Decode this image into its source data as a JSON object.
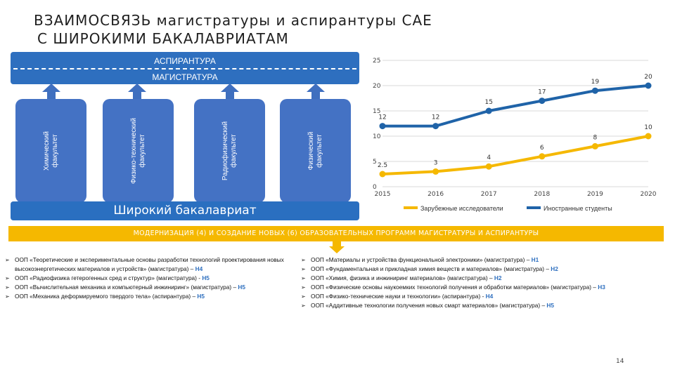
{
  "title": {
    "line1": "ВЗАИМОСВЯЗЬ магистратуры и аспирантуры САЕ",
    "line2": "С ШИРОКИМИ БАКАЛАВРИАТАМ"
  },
  "diagram": {
    "aspirantura": "АСПИРАНТУРА",
    "magistratura": "МАГИСТРАТУРА",
    "faculties": [
      "Химический\nфакультет",
      "Физико-технический\nфакультет",
      "Радиофизический\nфакультет",
      "Физический\nфакультет"
    ],
    "bachelor": "Широкий бакалавриат",
    "colors": {
      "block": "#2e6fbf",
      "faculty": "#4472c4",
      "arrow": "#3f6fbf"
    }
  },
  "chart_data": {
    "type": "line",
    "categories": [
      "2015",
      "2016",
      "2017",
      "2018",
      "2019",
      "2020"
    ],
    "series": [
      {
        "name": "Зарубежные исследователи",
        "values": [
          2.5,
          3,
          4,
          6,
          8,
          10
        ],
        "color": "#f5b800"
      },
      {
        "name": "Иностранные студенты",
        "values": [
          12,
          12,
          15,
          17,
          19,
          20
        ],
        "color": "#1f63a8"
      }
    ],
    "ylim": [
      0,
      25
    ],
    "yticks": [
      "0",
      "5",
      "10",
      "15",
      "20",
      "25"
    ],
    "grid": true,
    "legend": "bottom"
  },
  "banner": "МОДЕРНИЗАЦИЯ (4) И СОЗДАНИЕ НОВЫХ (6) ОБРАЗОВАТЕЛЬНЫХ ПРОГРАММ МАГИСТРАТУРЫ И АСПИРАНТУРЫ",
  "programs": {
    "left": [
      {
        "text": "ООП «Теоретические и экспериментальные основы разработки технологий проектирования новых высокоэнергетических материалов и устройств» (магистратура) – ",
        "code": "Н4"
      },
      {
        "text": "ООП «Радиофизика гетерогенных сред и структур» (магистратура) - ",
        "code": "Н5"
      },
      {
        "text": "ООП «Вычислительная механика и компьютерный инжиниринг» (магистратура) – ",
        "code": "Н5"
      },
      {
        "text": "ООП «Механика деформируемого твердого тела» (аспирантура) – ",
        "code": "Н5"
      }
    ],
    "right": [
      {
        "text": "ООП «Материалы и устройства функциональной электроники» (магистратура) – ",
        "code": "Н1"
      },
      {
        "text": "ООП «Фундаментальная и прикладная химия веществ и материалов» (магистратура) – ",
        "code": "Н2"
      },
      {
        "text": "ООП «Химия, физика и инжиниринг материалов» (магистратура) – ",
        "code": "Н2"
      },
      {
        "text": "ООП «Физические основы наукоемких технологий получения и обработки материалов» (магистратура) – ",
        "code": "Н3"
      },
      {
        "text": "ООП «Физико-технические науки и технологии» (аспирантура) - ",
        "code": "Н4"
      },
      {
        "text": "ООП «Аддитивные технологии получения новых смарт материалов» (магистратура) – ",
        "code": "Н5"
      }
    ],
    "bullet": "➢"
  },
  "page_number": "14"
}
